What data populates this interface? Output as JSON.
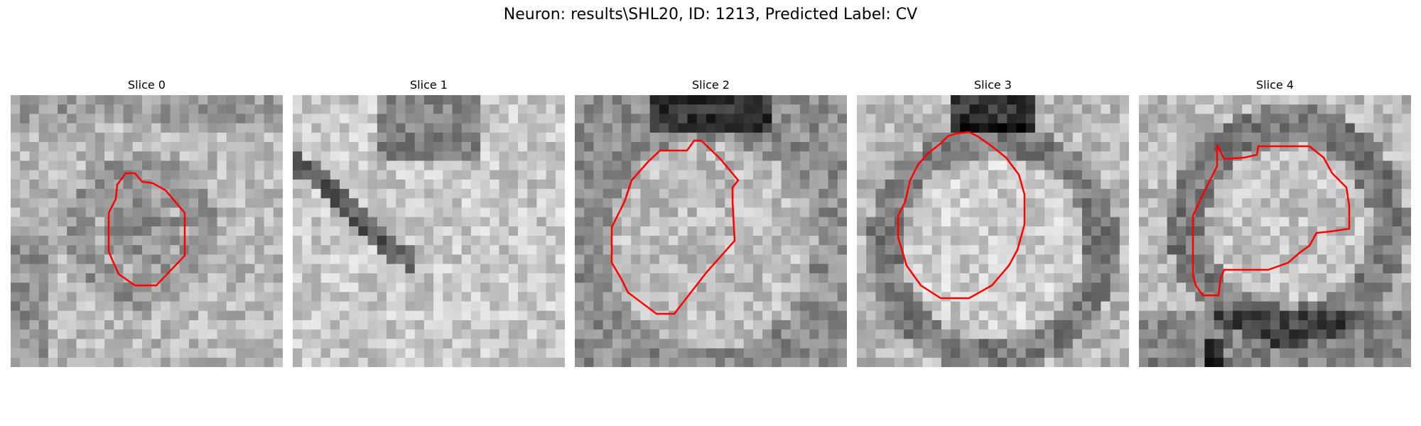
{
  "figure": {
    "title": "Neuron: results\\SHL20, ID: 1213, Predicted Label: CV"
  },
  "colors": {
    "contour": "#ff0000",
    "background": "#ffffff"
  },
  "slices": [
    {
      "label": "Slice 0",
      "pattern": "small-roi"
    },
    {
      "label": "Slice 1",
      "pattern": "diagonal-streak"
    },
    {
      "label": "Slice 2",
      "pattern": "large-roi"
    },
    {
      "label": "Slice 3",
      "pattern": "ring-roi"
    },
    {
      "label": "Slice 4",
      "pattern": "irregular-roi"
    }
  ]
}
